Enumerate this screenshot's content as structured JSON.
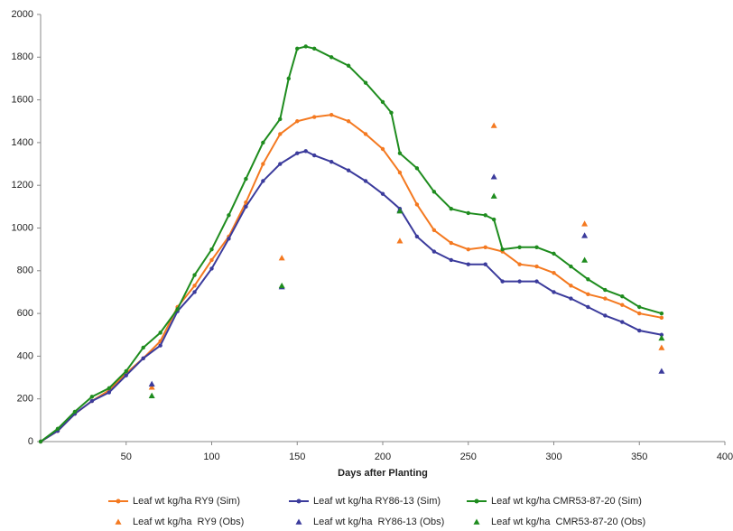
{
  "chart_data": {
    "type": "line",
    "x_label": "Days after Planting",
    "xlim": [
      0,
      400
    ],
    "xticks": [
      50,
      100,
      150,
      200,
      250,
      300,
      350,
      400
    ],
    "ylim": [
      0,
      2000
    ],
    "yticks": [
      0,
      200,
      400,
      600,
      800,
      1000,
      1200,
      1400,
      1600,
      1800,
      2000
    ],
    "grid": false,
    "legend": "bottom",
    "series": [
      {
        "name": "Leaf wt kg/ha RY9 (Sim)",
        "color": "#f47920",
        "marker": "circle",
        "line": true,
        "x": [
          0,
          10,
          20,
          30,
          40,
          50,
          60,
          70,
          80,
          90,
          100,
          110,
          120,
          130,
          140,
          150,
          160,
          170,
          180,
          190,
          200,
          210,
          220,
          230,
          240,
          250,
          260,
          270,
          280,
          290,
          300,
          310,
          320,
          330,
          340,
          350,
          363
        ],
        "values": [
          0,
          50,
          130,
          190,
          240,
          320,
          390,
          470,
          630,
          730,
          850,
          960,
          1120,
          1300,
          1440,
          1500,
          1520,
          1530,
          1500,
          1440,
          1370,
          1260,
          1110,
          990,
          930,
          900,
          910,
          890,
          830,
          820,
          790,
          730,
          690,
          670,
          640,
          600,
          580
        ]
      },
      {
        "name": "Leaf wt kg/ha RY86-13 (Sim)",
        "color": "#3b3b9c",
        "marker": "circle",
        "line": true,
        "x": [
          0,
          10,
          20,
          30,
          40,
          50,
          60,
          70,
          80,
          90,
          100,
          110,
          120,
          130,
          140,
          150,
          155,
          160,
          170,
          180,
          190,
          200,
          210,
          220,
          230,
          240,
          250,
          260,
          270,
          280,
          290,
          300,
          310,
          320,
          330,
          340,
          350,
          363
        ],
        "values": [
          0,
          50,
          130,
          190,
          230,
          310,
          390,
          450,
          610,
          700,
          810,
          950,
          1100,
          1220,
          1300,
          1350,
          1360,
          1340,
          1310,
          1270,
          1220,
          1160,
          1090,
          960,
          890,
          850,
          830,
          830,
          750,
          750,
          750,
          700,
          670,
          630,
          590,
          560,
          520,
          500
        ]
      },
      {
        "name": "Leaf wt kg/ha CMR53-87-20 (Sim)",
        "color": "#1e8c1e",
        "marker": "circle",
        "line": true,
        "x": [
          0,
          10,
          20,
          30,
          40,
          50,
          60,
          70,
          80,
          90,
          100,
          110,
          120,
          130,
          140,
          145,
          150,
          155,
          160,
          170,
          180,
          190,
          200,
          205,
          210,
          220,
          230,
          240,
          250,
          260,
          265,
          270,
          280,
          290,
          300,
          310,
          320,
          330,
          340,
          350,
          363
        ],
        "values": [
          0,
          60,
          140,
          210,
          250,
          330,
          440,
          510,
          620,
          780,
          900,
          1060,
          1230,
          1400,
          1510,
          1700,
          1840,
          1850,
          1840,
          1800,
          1760,
          1680,
          1590,
          1540,
          1350,
          1280,
          1170,
          1090,
          1070,
          1060,
          1040,
          900,
          910,
          910,
          880,
          820,
          760,
          710,
          680,
          630,
          600
        ]
      },
      {
        "name": "Leaf wt kg/ha  RY9 (Obs)",
        "color": "#f47920",
        "marker": "triangle",
        "line": false,
        "x": [
          65,
          141,
          210,
          265,
          318,
          363
        ],
        "values": [
          255,
          860,
          940,
          1480,
          1020,
          440
        ]
      },
      {
        "name": "Leaf wt kg/ha  RY86-13 (Obs)",
        "color": "#3b3b9c",
        "marker": "triangle",
        "line": false,
        "x": [
          65,
          141,
          210,
          265,
          318,
          363
        ],
        "values": [
          270,
          725,
          1085,
          1240,
          965,
          330
        ]
      },
      {
        "name": "Leaf wt kg/ha  CMR53-87-20 (Obs)",
        "color": "#1e8c1e",
        "marker": "triangle",
        "line": false,
        "x": [
          65,
          141,
          210,
          265,
          318,
          363
        ],
        "values": [
          215,
          730,
          1080,
          1150,
          850,
          485
        ]
      }
    ]
  }
}
